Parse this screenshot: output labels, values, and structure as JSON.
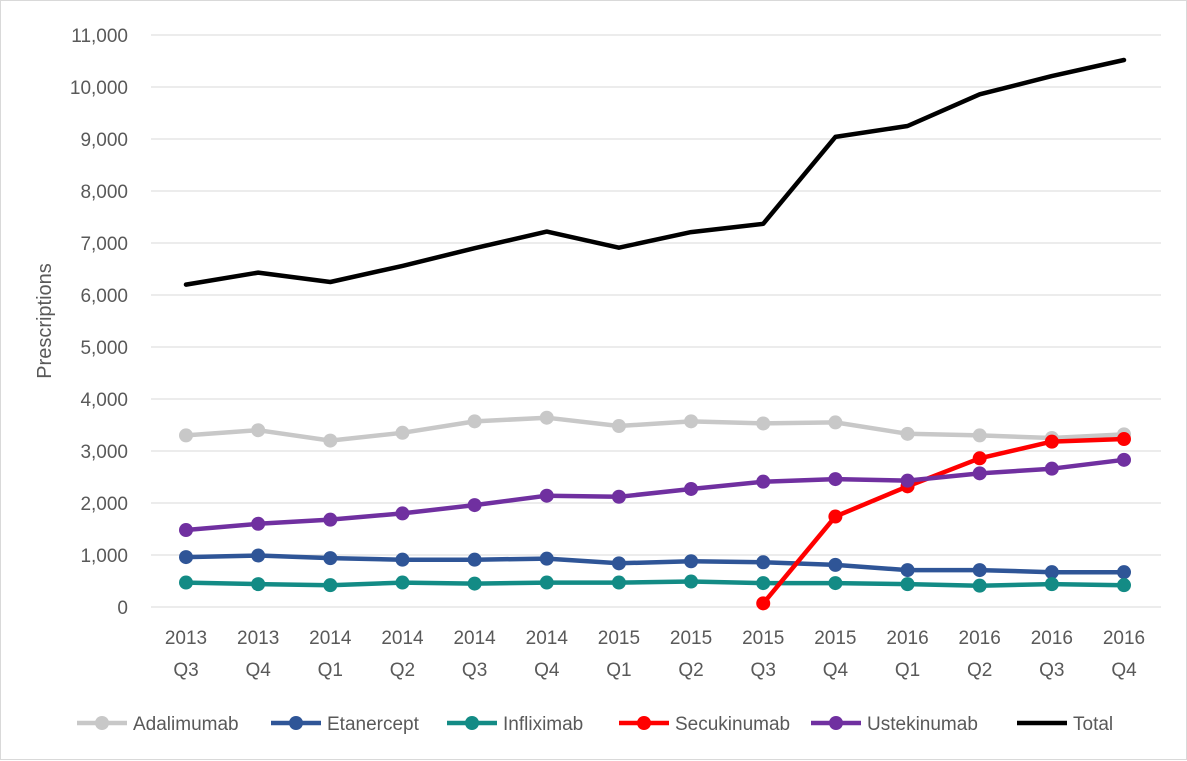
{
  "chart_data": {
    "type": "line",
    "title": "",
    "xlabel": "",
    "ylabel": "Prescriptions",
    "ylim": [
      0,
      11000
    ],
    "yticks": [
      0,
      1000,
      2000,
      3000,
      4000,
      5000,
      6000,
      7000,
      8000,
      9000,
      10000,
      11000
    ],
    "ytick_labels": [
      "0",
      "1,000",
      "2,000",
      "3,000",
      "4,000",
      "5,000",
      "6,000",
      "7,000",
      "8,000",
      "9,000",
      "10,000",
      "11,000"
    ],
    "grid": true,
    "legend_position": "bottom",
    "categories": [
      [
        "2013",
        "Q3"
      ],
      [
        "2013",
        "Q4"
      ],
      [
        "2014",
        "Q1"
      ],
      [
        "2014",
        "Q2"
      ],
      [
        "2014",
        "Q3"
      ],
      [
        "2014",
        "Q4"
      ],
      [
        "2015",
        "Q1"
      ],
      [
        "2015",
        "Q2"
      ],
      [
        "2015",
        "Q3"
      ],
      [
        "2015",
        "Q4"
      ],
      [
        "2016",
        "Q1"
      ],
      [
        "2016",
        "Q2"
      ],
      [
        "2016",
        "Q3"
      ],
      [
        "2016",
        "Q4"
      ]
    ],
    "series": [
      {
        "name": "Adalimumab",
        "color": "#c8c8c8",
        "marker": true,
        "values": [
          3300,
          3400,
          3200,
          3350,
          3570,
          3640,
          3480,
          3570,
          3530,
          3550,
          3330,
          3300,
          3250,
          3320
        ]
      },
      {
        "name": "Etanercept",
        "color": "#2f5597",
        "marker": true,
        "values": [
          960,
          990,
          940,
          910,
          910,
          930,
          840,
          880,
          860,
          810,
          710,
          710,
          670,
          670
        ]
      },
      {
        "name": "Infliximab",
        "color": "#138b85",
        "marker": true,
        "values": [
          470,
          440,
          420,
          470,
          450,
          470,
          470,
          490,
          460,
          460,
          440,
          410,
          440,
          420
        ]
      },
      {
        "name": "Secukinumab",
        "color": "#ff0000",
        "marker": true,
        "values": [
          null,
          null,
          null,
          null,
          null,
          null,
          null,
          null,
          70,
          1740,
          2320,
          2860,
          3180,
          3230
        ]
      },
      {
        "name": "Ustekinumab",
        "color": "#7030a0",
        "marker": true,
        "values": [
          1480,
          1600,
          1680,
          1800,
          1960,
          2140,
          2120,
          2270,
          2410,
          2460,
          2430,
          2570,
          2660,
          2830
        ]
      },
      {
        "name": "Total",
        "color": "#000000",
        "marker": false,
        "values": [
          6200,
          6430,
          6250,
          6560,
          6900,
          7220,
          6910,
          7210,
          7370,
          9040,
          9250,
          9860,
          10210,
          10520
        ]
      }
    ]
  }
}
